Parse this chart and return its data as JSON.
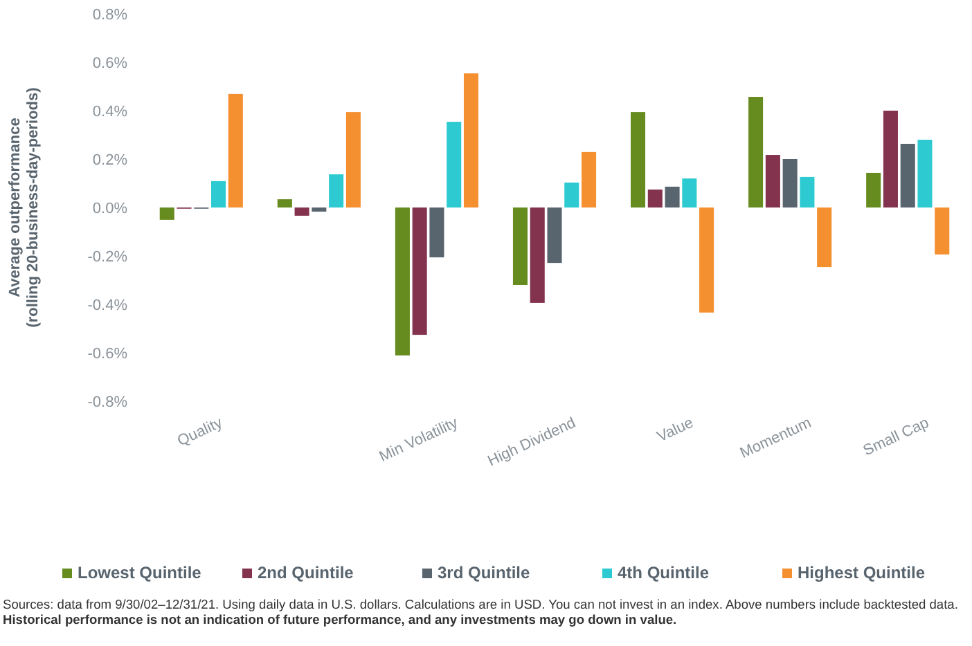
{
  "chart_data": {
    "type": "bar",
    "ylabel": "Average outperformance (rolling 20-business-day-periods)",
    "categories": [
      "Quality",
      null,
      "Min Volatility",
      "High Dividend",
      "Value",
      "Momentum",
      "Small Cap"
    ],
    "series": [
      {
        "name": "Lowest Quintile",
        "color": "#668b1f",
        "values": [
          -0.051,
          0.034,
          -0.611,
          -0.32,
          0.394,
          0.457,
          0.143
        ]
      },
      {
        "name": "2nd Quintile",
        "color": "#84334f",
        "values": [
          -0.005,
          -0.034,
          -0.526,
          -0.394,
          0.074,
          0.217,
          0.4
        ]
      },
      {
        "name": "3rd Quintile",
        "color": "#58646e",
        "values": [
          -0.005,
          -0.017,
          -0.206,
          -0.229,
          0.086,
          0.2,
          0.263
        ]
      },
      {
        "name": "4th Quintile",
        "color": "#2dcbd1",
        "values": [
          0.109,
          0.137,
          0.354,
          0.103,
          0.12,
          0.126,
          0.28
        ]
      },
      {
        "name": "Highest Quintile",
        "color": "#f59031",
        "values": [
          0.469,
          0.394,
          0.554,
          0.229,
          -0.434,
          -0.246,
          -0.194
        ]
      }
    ],
    "ylim": [
      -0.8,
      0.8
    ],
    "yticks": [
      {
        "value": -0.8,
        "label": "-0.8%"
      },
      {
        "value": -0.6,
        "label": "-0.6%"
      },
      {
        "value": -0.4,
        "label": "-0.4%"
      },
      {
        "value": -0.2,
        "label": "-0.2%"
      },
      {
        "value": 0,
        "label": "0.0%"
      },
      {
        "value": 0.2,
        "label": "0.2%"
      },
      {
        "value": 0.4,
        "label": "0.4%"
      },
      {
        "value": 0.6,
        "label": "0.6%"
      },
      {
        "value": 0.8,
        "label": "0.8%"
      }
    ],
    "legend": "bottom",
    "annotations": [
      "Sources: data from 9/30/02–12/31/21. Using daily data in U.S. dollars. Calculations are in USD. You can not invest in an index. Above numbers include backtested data.",
      "Historical performance is not an indication of future performance, and any investments may go down in value."
    ]
  }
}
